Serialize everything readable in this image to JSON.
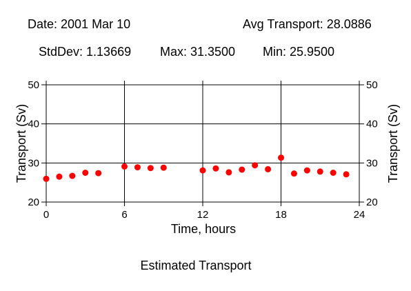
{
  "header": {
    "date_text": "Date: 2001 Mar 10",
    "avg_text": "Avg Transport: 28.0886",
    "stddev_text": "StdDev: 1.13669",
    "max_text": "Max: 31.3500",
    "min_text": "Min: 25.9500"
  },
  "caption": "Estimated Transport",
  "chart_data": {
    "type": "scatter",
    "title": "Estimated Transport",
    "xlabel": "Time, hours",
    "ylabel": "Transport (Sv)",
    "ylabel_right": "Transport (Sv)",
    "xlim": [
      0,
      24
    ],
    "ylim": [
      20,
      50
    ],
    "x_ticks": [
      0,
      6,
      12,
      18,
      24
    ],
    "y_ticks": [
      20,
      30,
      40,
      50
    ],
    "grid": true,
    "marker_color": "#ff0000",
    "x": [
      0,
      1,
      2,
      3,
      4,
      6,
      7,
      8,
      9,
      12,
      13,
      14,
      15,
      16,
      17,
      18,
      19,
      20,
      21,
      22,
      23
    ],
    "y": [
      25.95,
      26.5,
      26.7,
      27.5,
      27.4,
      29.1,
      28.9,
      28.7,
      28.8,
      28.1,
      28.6,
      27.6,
      28.3,
      29.4,
      28.4,
      31.35,
      27.3,
      28.1,
      27.8,
      27.5,
      27.1
    ]
  }
}
